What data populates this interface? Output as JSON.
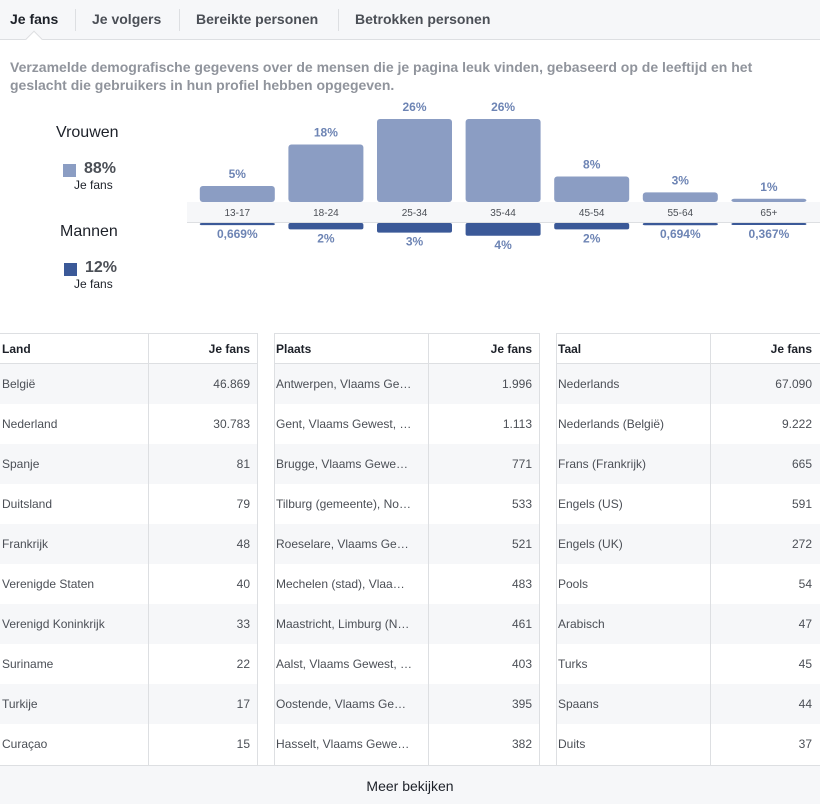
{
  "tabs": [
    {
      "label": "Je fans",
      "active": true
    },
    {
      "label": "Je volgers",
      "active": false
    },
    {
      "label": "Bereikte personen",
      "active": false
    },
    {
      "label": "Betrokken personen",
      "active": false
    }
  ],
  "description": "Verzamelde demografische gegevens over de mensen die je pagina leuk vinden, gebaseerd op de leeftijd en het geslacht die gebruikers in hun profiel hebben opgegeven.",
  "gender": {
    "women": {
      "title": "Vrouwen",
      "pct": "88%",
      "sub": "Je fans",
      "color": "#8b9dc3"
    },
    "men": {
      "title": "Mannen",
      "pct": "12%",
      "sub": "Je fans",
      "color": "#3b5998"
    }
  },
  "chart_data": {
    "type": "bar",
    "categories": [
      "13-17",
      "18-24",
      "25-34",
      "35-44",
      "45-54",
      "55-64",
      "65+"
    ],
    "series": [
      {
        "name": "Vrouwen",
        "values": [
          5,
          18,
          26,
          26,
          8,
          3,
          1
        ],
        "labels": [
          "5%",
          "18%",
          "26%",
          "26%",
          "8%",
          "3%",
          "1%"
        ],
        "color": "#8b9dc3"
      },
      {
        "name": "Mannen",
        "values": [
          0.669,
          2,
          3,
          4,
          2,
          0.694,
          0.367
        ],
        "labels": [
          "0,669%",
          "2%",
          "3%",
          "4%",
          "2%",
          "0,694%",
          "0,367%"
        ],
        "color": "#3b5998"
      }
    ]
  },
  "tables": {
    "country": {
      "header": [
        "Land",
        "Je fans"
      ],
      "rows": [
        [
          "België",
          "46.869"
        ],
        [
          "Nederland",
          "30.783"
        ],
        [
          "Spanje",
          "81"
        ],
        [
          "Duitsland",
          "79"
        ],
        [
          "Frankrijk",
          "48"
        ],
        [
          "Verenigde Staten",
          "40"
        ],
        [
          "Verenigd Koninkrijk",
          "33"
        ],
        [
          "Suriname",
          "22"
        ],
        [
          "Turkije",
          "17"
        ],
        [
          "Curaçao",
          "15"
        ]
      ]
    },
    "city": {
      "header": [
        "Plaats",
        "Je fans"
      ],
      "rows": [
        [
          "Antwerpen, Vlaams Ge…",
          "1.996"
        ],
        [
          "Gent, Vlaams Gewest, …",
          "1.113"
        ],
        [
          "Brugge, Vlaams Gewe…",
          "771"
        ],
        [
          "Tilburg (gemeente), No…",
          "533"
        ],
        [
          "Roeselare, Vlaams Ge…",
          "521"
        ],
        [
          "Mechelen (stad), Vlaa…",
          "483"
        ],
        [
          "Maastricht, Limburg (N…",
          "461"
        ],
        [
          "Aalst, Vlaams Gewest, …",
          "403"
        ],
        [
          "Oostende, Vlaams Ge…",
          "395"
        ],
        [
          "Hasselt, Vlaams Gewe…",
          "382"
        ]
      ]
    },
    "language": {
      "header": [
        "Taal",
        "Je fans"
      ],
      "rows": [
        [
          "Nederlands",
          "67.090"
        ],
        [
          "Nederlands (België)",
          "9.222"
        ],
        [
          "Frans (Frankrijk)",
          "665"
        ],
        [
          "Engels (US)",
          "591"
        ],
        [
          "Engels (UK)",
          "272"
        ],
        [
          "Pools",
          "54"
        ],
        [
          "Arabisch",
          "47"
        ],
        [
          "Turks",
          "45"
        ],
        [
          "Spaans",
          "44"
        ],
        [
          "Duits",
          "37"
        ]
      ]
    }
  },
  "footer": {
    "more_label": "Meer bekijken"
  }
}
